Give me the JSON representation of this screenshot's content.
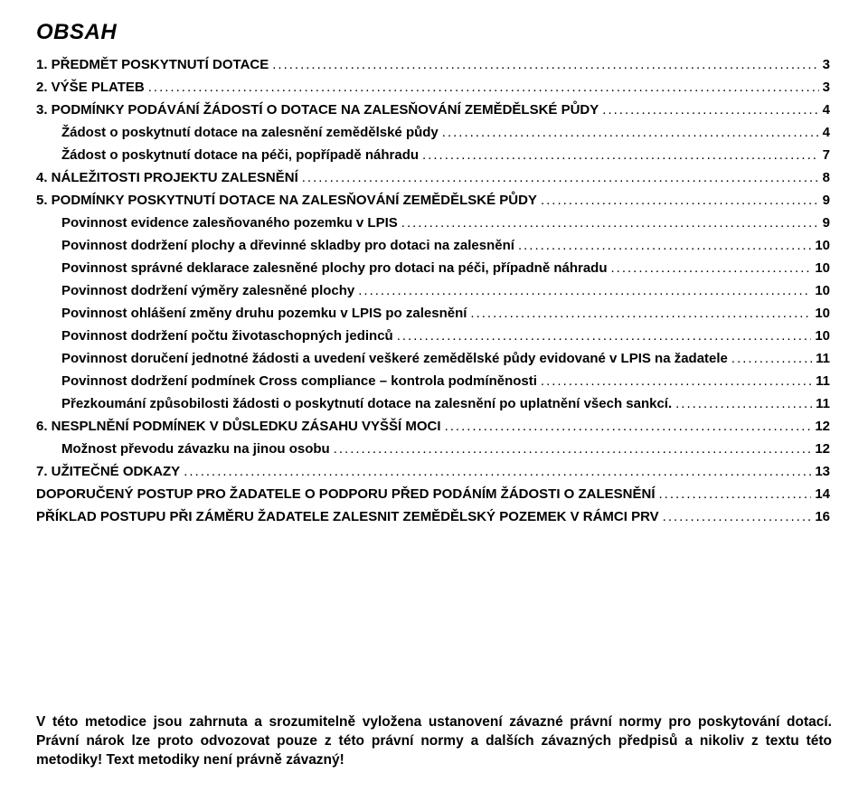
{
  "colors": {
    "text": "#000000",
    "background": "#ffffff"
  },
  "typography": {
    "heading_family": "Arial",
    "heading_size_pt": 18,
    "heading_weight": 900,
    "heading_style": "italic",
    "body_family": "Arial",
    "body_size_pt": 11,
    "line_height": 1.35
  },
  "heading": "OBSAH",
  "toc": [
    {
      "level": 1,
      "label": "1. PŘEDMĚT POSKYTNUTÍ DOTACE",
      "page": "3"
    },
    {
      "level": 1,
      "label": "2. VÝŠE PLATEB",
      "page": "3"
    },
    {
      "level": 1,
      "label": "3. PODMÍNKY PODÁVÁNÍ ŽÁDOSTÍ O DOTACE NA ZALESŇOVÁNÍ ZEMĚDĚLSKÉ PŮDY",
      "page": "4"
    },
    {
      "level": 2,
      "label": "Žádost o poskytnutí dotace na zalesnění zemědělské půdy",
      "page": "4"
    },
    {
      "level": 2,
      "label": "Žádost o poskytnutí dotace na péči, popřípadě náhradu",
      "page": "7"
    },
    {
      "level": 1,
      "label": "4. NÁLEŽITOSTI PROJEKTU ZALESNĚNÍ",
      "page": "8"
    },
    {
      "level": 1,
      "label": "5. PODMÍNKY POSKYTNUTÍ DOTACE NA ZALESŇOVÁNÍ ZEMĚDĚLSKÉ PŮDY",
      "page": "9"
    },
    {
      "level": 2,
      "label": "Povinnost evidence zalesňovaného pozemku v LPIS",
      "page": "9"
    },
    {
      "level": 2,
      "label": "Povinnost dodržení plochy a dřevinné skladby pro dotaci na zalesnění",
      "page": "10"
    },
    {
      "level": 2,
      "label": "Povinnost správné deklarace zalesněné plochy pro dotaci na péči, případně náhradu",
      "page": "10"
    },
    {
      "level": 2,
      "label": "Povinnost dodržení výměry zalesněné plochy",
      "page": "10"
    },
    {
      "level": 2,
      "label": "Povinnost ohlášení změny druhu pozemku v LPIS po zalesnění",
      "page": "10"
    },
    {
      "level": 2,
      "label": "Povinnost dodržení počtu životaschopných jedinců",
      "page": "10"
    },
    {
      "level": 2,
      "label": "Povinnost doručení jednotné žádosti a uvedení veškeré zemědělské půdy evidované v LPIS na žadatele",
      "page": "11"
    },
    {
      "level": 2,
      "label": "Povinnost dodržení podmínek Cross compliance – kontrola podmíněnosti",
      "page": "11"
    },
    {
      "level": 2,
      "label": "Přezkoumání způsobilosti žádosti o poskytnutí dotace na zalesnění po uplatnění všech sankcí.",
      "page": "11"
    },
    {
      "level": 1,
      "label": "6. NESPLNĚNÍ PODMÍNEK V DŮSLEDKU ZÁSAHU VYŠŠÍ MOCI",
      "page": "12"
    },
    {
      "level": 2,
      "label": "Možnost převodu závazku na jinou osobu",
      "page": "12"
    },
    {
      "level": 1,
      "label": "7. UŽITEČNÉ ODKAZY",
      "page": "13"
    },
    {
      "level": 1,
      "label": "DOPORUČENÝ POSTUP PRO ŽADATELE O PODPORU PŘED PODÁNÍM ŽÁDOSTI O ZALESNĚNÍ",
      "page": "14"
    },
    {
      "level": 1,
      "label": "PŘÍKLAD POSTUPU PŘI ZÁMĚRU ŽADATELE ZALESNIT ZEMĚDĚLSKÝ POZEMEK V RÁMCI PRV",
      "page": "16"
    }
  ],
  "footer_note": "V této metodice jsou zahrnuta a srozumitelně vyložena ustanovení závazné právní normy pro poskytování dotací. Právní nárok lze proto odvozovat pouze z této právní normy a dalších závazných předpisů a nikoliv z textu této metodiky! Text metodiky není právně závazný!"
}
